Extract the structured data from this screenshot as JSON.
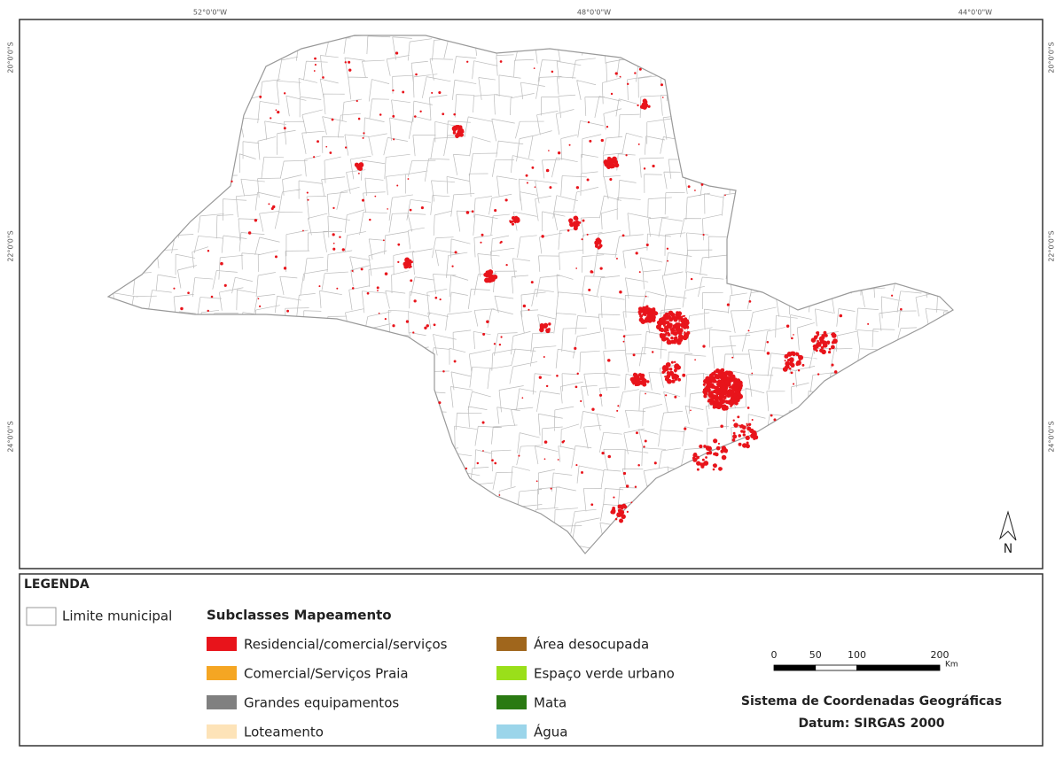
{
  "map": {
    "top_labels": [
      "52°0'0\"W",
      "48°0'0\"W",
      "44°0'0\"W"
    ],
    "left_labels": [
      "20°0'0\"S",
      "22°0'0\"S",
      "24°0'0\"S"
    ],
    "right_labels": [
      "20°0'0\"S",
      "22°0'0\"S",
      "24°0'0\"S"
    ],
    "north": "N"
  },
  "legend": {
    "title": "LEGENDA",
    "boundary": "Limite municipal",
    "subclasses_title": "Subclasses Mapeamento",
    "items": [
      {
        "label": "Residencial/comercial/serviços",
        "color": "#e8141b"
      },
      {
        "label": "Comercial/Serviços Praia",
        "color": "#f5a623"
      },
      {
        "label": "Grandes equipamentos",
        "color": "#808080"
      },
      {
        "label": "Loteamento",
        "color": "#fde3b8"
      },
      {
        "label": "Área desocupada",
        "color": "#a0661c"
      },
      {
        "label": "Espaço verde urbano",
        "color": "#9adf1a"
      },
      {
        "label": "Mata",
        "color": "#2a7a12"
      },
      {
        "label": "Água",
        "color": "#9bd5ea"
      }
    ]
  },
  "scale": {
    "ticks": [
      0,
      50,
      100,
      200
    ],
    "unit": "Km"
  },
  "coordinates": {
    "system": "Sistema de Coordenadas Geográficas",
    "datum": "Datum: SIRGAS 2000"
  }
}
